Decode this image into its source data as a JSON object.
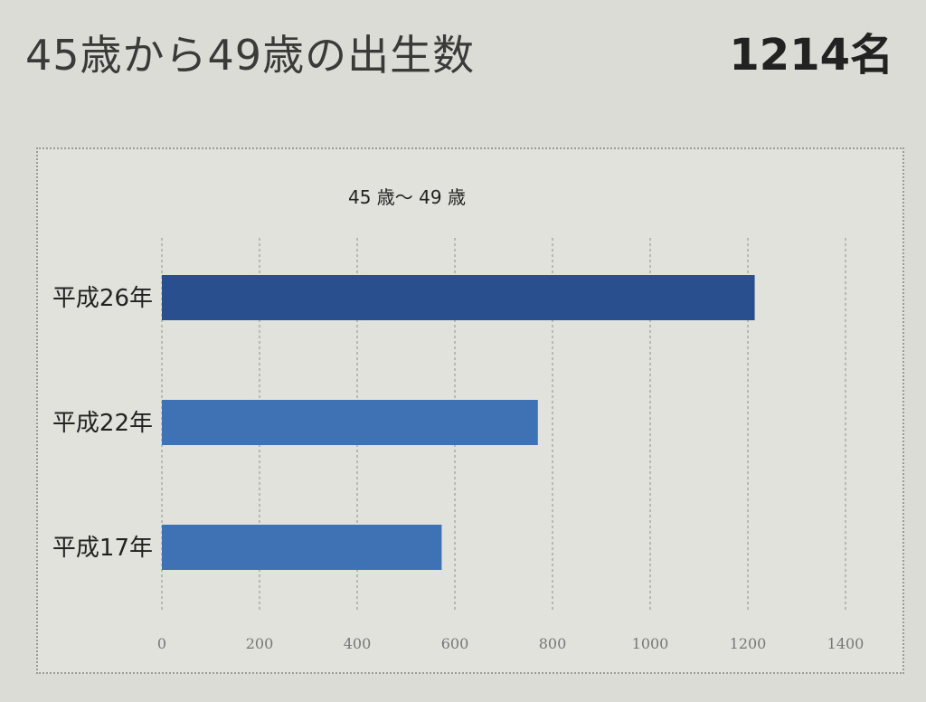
{
  "headline": {
    "title": "45歳から49歳の出生数",
    "total": "1214名"
  },
  "chart_data": {
    "type": "bar",
    "orientation": "horizontal",
    "title": "45 歳～ 49 歳",
    "categories": [
      "平成26年",
      "平成22年",
      "平成17年"
    ],
    "values": [
      1214,
      770,
      573
    ],
    "xlim": [
      0,
      1400
    ],
    "xticks": [
      0,
      200,
      400,
      600,
      800,
      1000,
      1200,
      1400
    ],
    "grid": true,
    "legend": "none",
    "colors": {
      "bar": "#3f72b4",
      "bar_highlight": "#2a4f8e",
      "grid": "#b9b9b4"
    }
  }
}
